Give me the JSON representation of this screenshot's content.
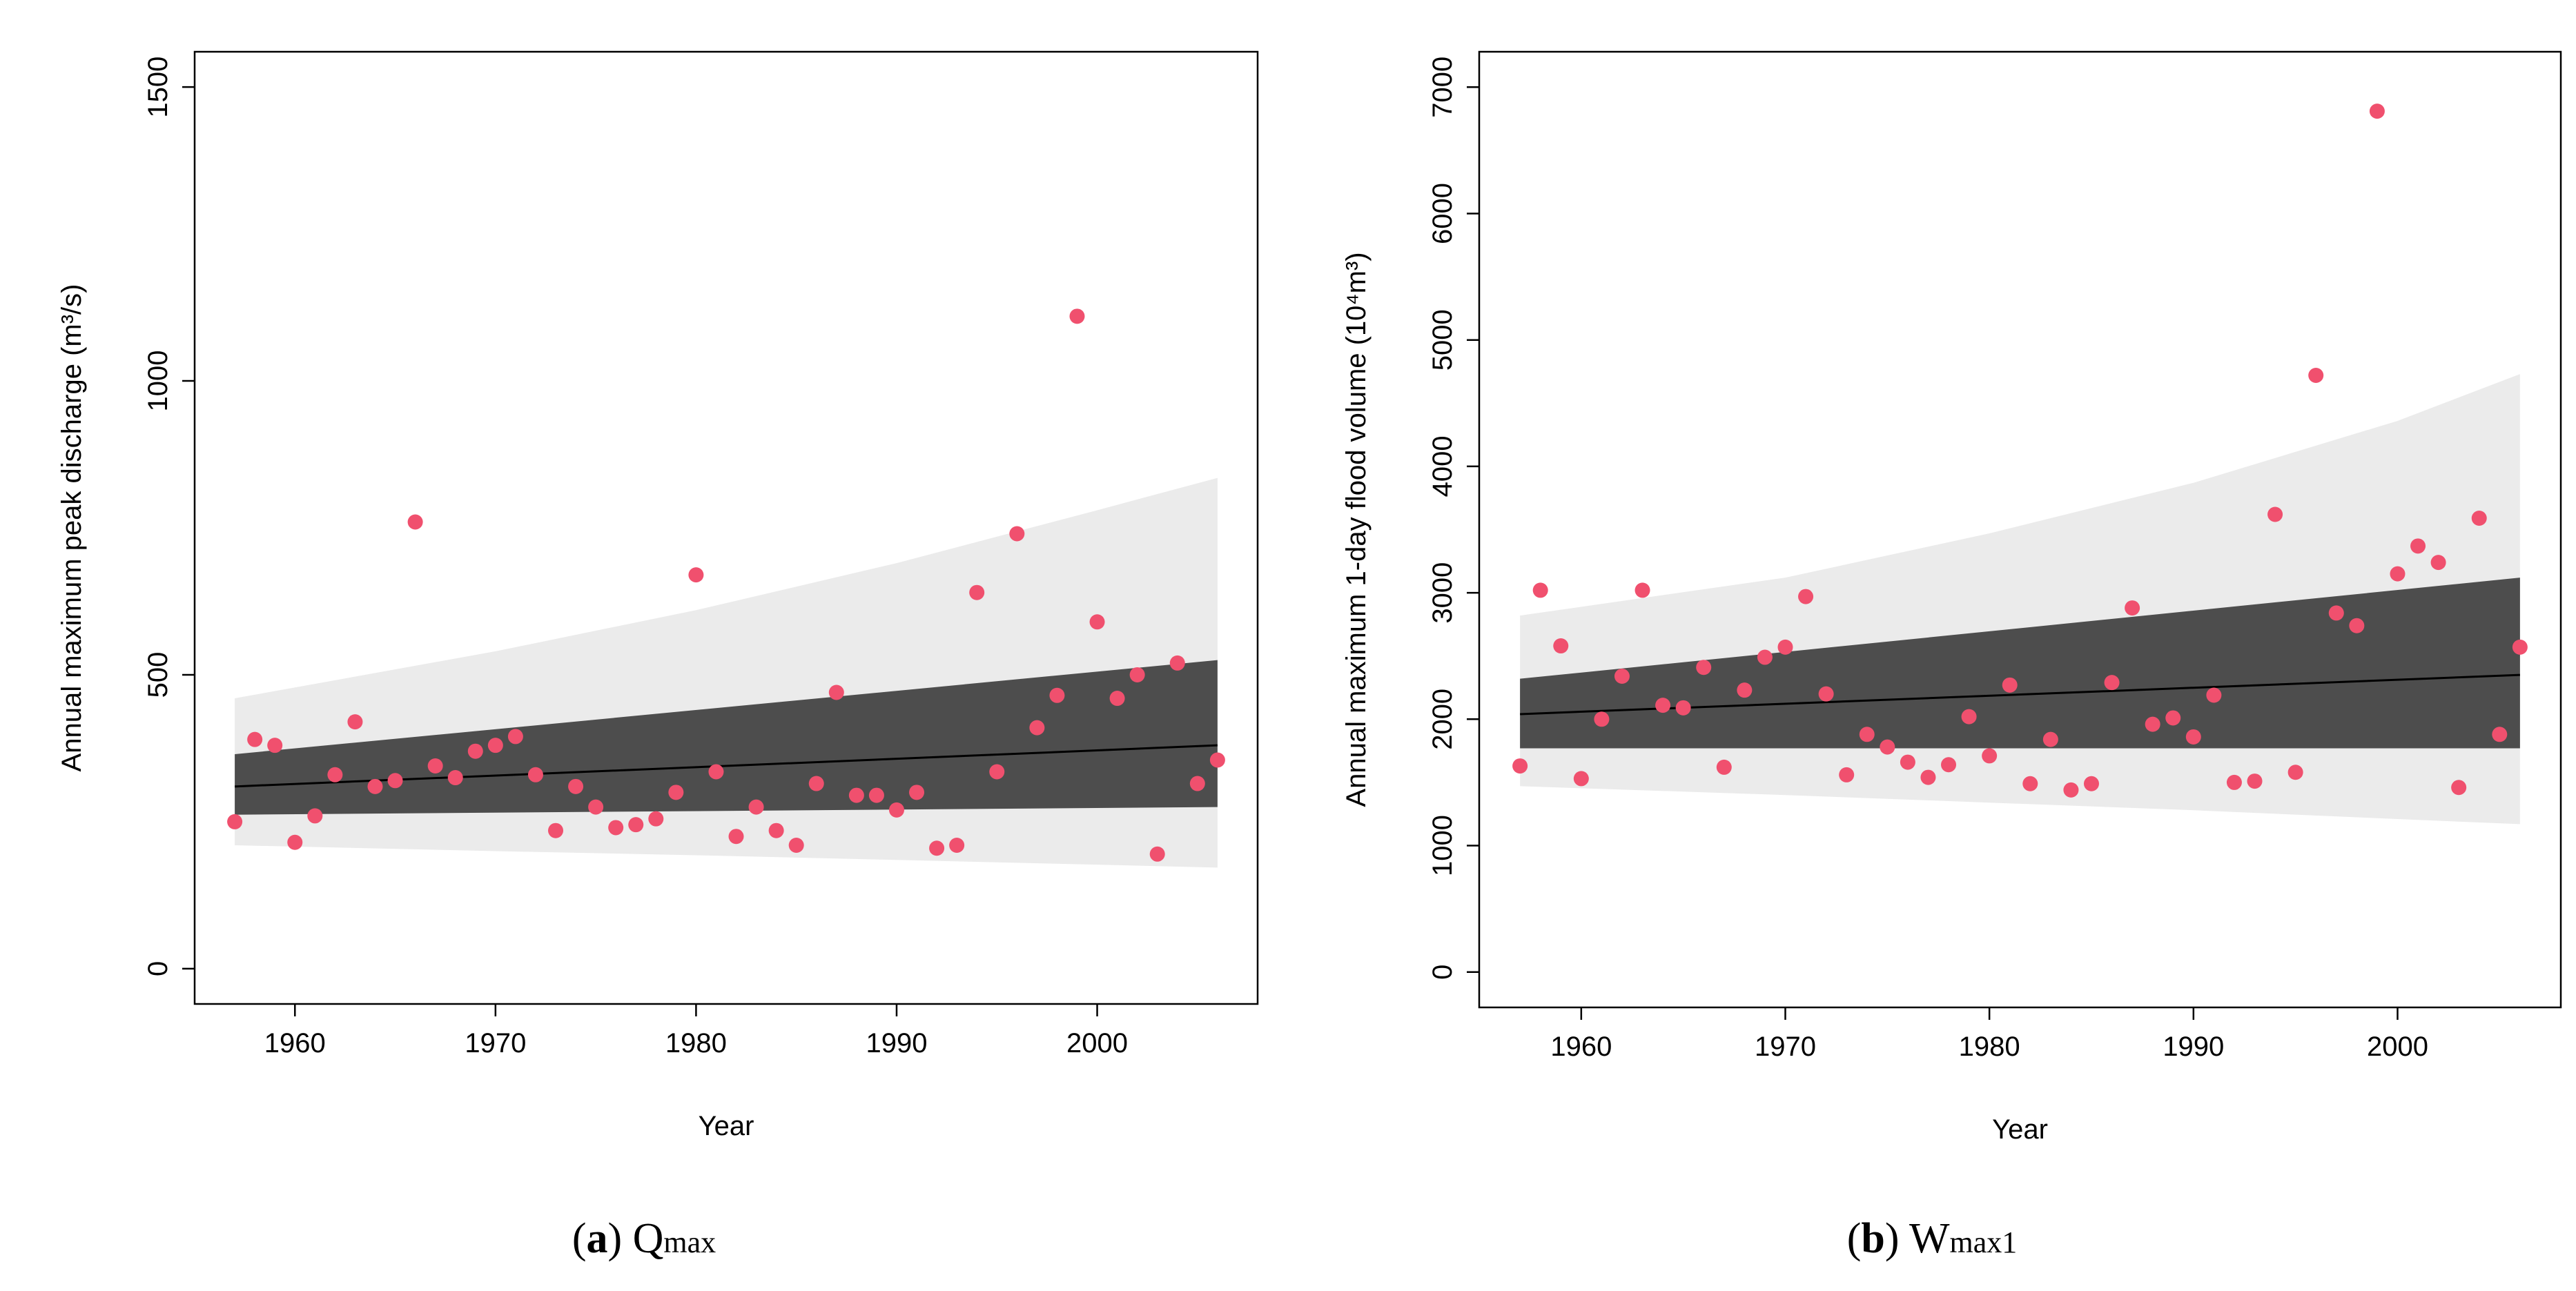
{
  "chart_data": [
    {
      "type": "scatter",
      "panel_label": "a",
      "caption_main": "Q",
      "caption_sub": "max",
      "xlabel": "Year",
      "ylabel": "Annual maximum peak discharge  (m³/s)",
      "xlim": [
        1955,
        2008
      ],
      "ylim": [
        -60,
        1560
      ],
      "xticks": [
        1960,
        1970,
        1980,
        1990,
        2000
      ],
      "yticks": [
        0,
        500,
        1000,
        1500
      ],
      "x": [
        1957,
        1958,
        1959,
        1960,
        1961,
        1962,
        1963,
        1964,
        1965,
        1966,
        1967,
        1968,
        1969,
        1970,
        1971,
        1972,
        1973,
        1974,
        1975,
        1976,
        1977,
        1978,
        1979,
        1980,
        1981,
        1982,
        1983,
        1984,
        1985,
        1986,
        1987,
        1988,
        1989,
        1990,
        1991,
        1992,
        1993,
        1994,
        1995,
        1996,
        1997,
        1998,
        1999,
        2000,
        2001,
        2002,
        2003,
        2004,
        2005,
        2006
      ],
      "y": [
        250,
        390,
        380,
        215,
        260,
        330,
        420,
        310,
        320,
        760,
        345,
        325,
        370,
        380,
        395,
        330,
        235,
        310,
        275,
        240,
        245,
        255,
        300,
        670,
        335,
        225,
        275,
        235,
        210,
        315,
        470,
        295,
        295,
        270,
        300,
        205,
        210,
        640,
        335,
        740,
        410,
        465,
        1110,
        590,
        460,
        500,
        195,
        520,
        315,
        355
      ],
      "trend": {
        "x": [
          1957,
          2006
        ],
        "y": [
          310,
          380
        ]
      },
      "inner_band": {
        "x": [
          1957,
          2006
        ],
        "upper": [
          365,
          525
        ],
        "lower": [
          262,
          275
        ]
      },
      "outer_band": {
        "x": [
          1957,
          1970,
          1980,
          1990,
          2000,
          2006
        ],
        "upper": [
          460,
          540,
          610,
          690,
          780,
          835
        ],
        "lower": [
          210,
          200,
          193,
          185,
          177,
          172
        ]
      },
      "colors": {
        "points": "#f0506e",
        "inner": "#4d4d4d",
        "outer": "#ebebeb",
        "trend": "#000000"
      }
    },
    {
      "type": "scatter",
      "panel_label": "b",
      "caption_main": "W",
      "caption_sub": "max1",
      "xlabel": "Year",
      "ylabel": "Annual maximum 1-day flood volume  (10⁴m³)",
      "xlim": [
        1955,
        2008
      ],
      "ylim": [
        -280,
        7280
      ],
      "xticks": [
        1960,
        1970,
        1980,
        1990,
        2000
      ],
      "yticks": [
        0,
        1000,
        2000,
        3000,
        4000,
        5000,
        6000,
        7000
      ],
      "x": [
        1957,
        1958,
        1959,
        1960,
        1961,
        1962,
        1963,
        1964,
        1965,
        1966,
        1967,
        1968,
        1969,
        1970,
        1971,
        1972,
        1973,
        1974,
        1975,
        1976,
        1977,
        1978,
        1979,
        1980,
        1981,
        1982,
        1983,
        1984,
        1985,
        1986,
        1987,
        1988,
        1989,
        1990,
        1991,
        1992,
        1993,
        1994,
        1995,
        1996,
        1997,
        1998,
        1999,
        2000,
        2001,
        2002,
        2003,
        2004,
        2005,
        2006
      ],
      "y": [
        1630,
        3020,
        2580,
        1530,
        2000,
        2340,
        3020,
        2110,
        2090,
        2410,
        1620,
        2230,
        2490,
        2570,
        2970,
        2200,
        1560,
        1880,
        1780,
        1660,
        1540,
        1640,
        2020,
        1710,
        2270,
        1490,
        1840,
        1440,
        1490,
        2290,
        2880,
        1960,
        2010,
        1860,
        2190,
        1500,
        1510,
        3620,
        1580,
        4720,
        2840,
        2740,
        6810,
        3150,
        3370,
        3240,
        1460,
        3590,
        1880,
        2570
      ],
      "trend": {
        "x": [
          1957,
          2006
        ],
        "y": [
          2040,
          2350
        ]
      },
      "inner_band": {
        "x": [
          1957,
          2006
        ],
        "upper": [
          2320,
          3120
        ],
        "lower": [
          1770,
          1770
        ]
      },
      "outer_band": {
        "x": [
          1957,
          1970,
          1980,
          1990,
          2000,
          2006
        ],
        "upper": [
          2820,
          3120,
          3470,
          3870,
          4360,
          4730
        ],
        "lower": [
          1470,
          1400,
          1340,
          1280,
          1210,
          1170
        ]
      },
      "colors": {
        "points": "#f0506e",
        "inner": "#4d4d4d",
        "outer": "#ebebeb",
        "trend": "#000000"
      }
    }
  ]
}
